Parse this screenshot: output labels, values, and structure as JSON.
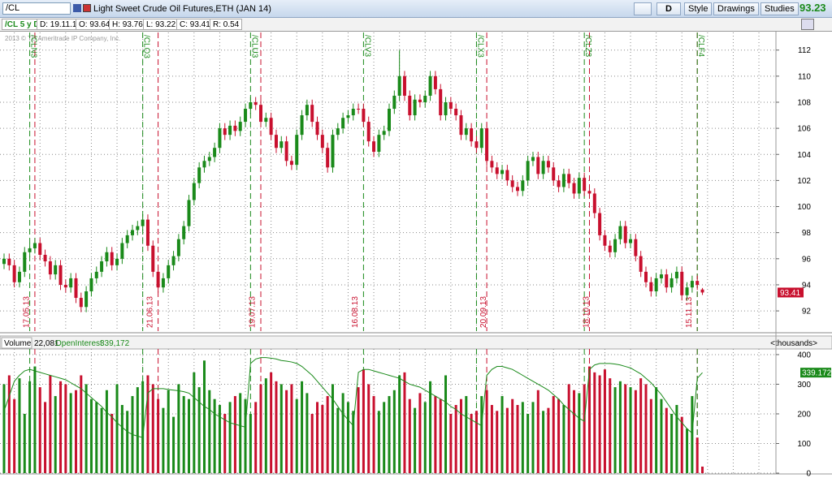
{
  "toolbar": {
    "symbol": "/CL",
    "title": "Light Sweet Crude Oil Futures,ETH (JAN 14)",
    "aggregation": "D",
    "style": "Style",
    "drawings": "Drawings",
    "studies": "Studies",
    "last": "93.23"
  },
  "info_bar": {
    "period": "/CL 5 y D",
    "date": "D: 19.11.13",
    "open": "O: 93.64",
    "high": "H: 93.76",
    "low": "L: 93.22",
    "close": "C: 93.41",
    "range": "R: 0.54"
  },
  "watermark": "2013 © TD Ameritrade IP Company, Inc.",
  "chart_data": [
    {
      "type": "candlestick",
      "up_color": "#1a8a1a",
      "down_color": "#c8102e",
      "grid": true,
      "ylim": [
        90.45,
        113.35
      ],
      "yticks": [
        92,
        94,
        96,
        98,
        100,
        102,
        104,
        106,
        108,
        110,
        112
      ],
      "categories": [
        null,
        null,
        null,
        null,
        null,
        "17.05.13",
        null,
        null,
        null,
        null,
        null,
        null,
        null,
        null,
        null,
        null,
        null,
        null,
        null,
        null,
        null,
        null,
        null,
        null,
        null,
        null,
        null,
        null,
        null,
        "21.06.13",
        null,
        null,
        null,
        null,
        null,
        null,
        null,
        null,
        null,
        null,
        null,
        null,
        null,
        null,
        null,
        null,
        null,
        null,
        null,
        "19.07.13",
        null,
        null,
        null,
        null,
        null,
        null,
        null,
        null,
        null,
        null,
        null,
        null,
        null,
        null,
        null,
        null,
        null,
        null,
        null,
        "16.08.13",
        null,
        null,
        null,
        null,
        null,
        null,
        null,
        null,
        null,
        null,
        null,
        null,
        null,
        null,
        null,
        null,
        null,
        null,
        null,
        null,
        null,
        null,
        null,
        null,
        "20.09.13",
        null,
        null,
        null,
        null,
        null,
        null,
        null,
        null,
        null,
        null,
        null,
        null,
        null,
        null,
        null,
        null,
        null,
        null,
        null,
        "18.10.13",
        null,
        null,
        null,
        null,
        null,
        null,
        null,
        null,
        null,
        null,
        null,
        null,
        null,
        null,
        null,
        null,
        null,
        null,
        null,
        "15.11.13",
        null,
        null
      ],
      "open": [
        95.6,
        96.0,
        95.5,
        94.2,
        95.0,
        96.5,
        96.8,
        97.2,
        96.3,
        95.8,
        94.8,
        95.5,
        94.0,
        93.8,
        94.5,
        93.0,
        92.3,
        93.5,
        94.5,
        95.0,
        95.8,
        96.5,
        95.5,
        96.0,
        97.2,
        97.8,
        98.2,
        98.5,
        99.0,
        97.0,
        95.0,
        93.8,
        94.5,
        95.5,
        96.2,
        97.5,
        98.5,
        100.5,
        101.8,
        103.0,
        103.5,
        103.8,
        104.5,
        106.0,
        105.5,
        106.2,
        105.8,
        106.5,
        107.5,
        108.0,
        107.8,
        106.5,
        106.8,
        105.5,
        104.5,
        105.0,
        103.5,
        103.2,
        105.5,
        107.0,
        107.8,
        106.5,
        105.5,
        104.5,
        103.0,
        105.5,
        106.0,
        106.8,
        107.0,
        107.5,
        107.5,
        106.5,
        105.0,
        104.2,
        105.5,
        105.8,
        107.5,
        108.5,
        110.0,
        108.5,
        107.0,
        108.2,
        108.0,
        108.5,
        110.0,
        109.0,
        107.0,
        108.0,
        107.5,
        107.0,
        105.5,
        106.0,
        105.0,
        104.5,
        106.0,
        103.5,
        103.0,
        102.5,
        102.8,
        102.0,
        101.5,
        101.2,
        102.0,
        103.5,
        103.8,
        102.5,
        103.5,
        103.0,
        102.0,
        101.5,
        102.5,
        101.8,
        101.0,
        102.2,
        101.2,
        101.0,
        99.5,
        97.8,
        97.0,
        96.5,
        97.5,
        98.5,
        97.2,
        97.5,
        96.2,
        95.0,
        94.2,
        93.5,
        94.5,
        94.8,
        93.8,
        94.5,
        95.0,
        93.2,
        93.8,
        94.3,
        93.64
      ],
      "high": [
        96.4,
        96.4,
        95.9,
        95.4,
        96.9,
        97.2,
        97.6,
        97.6,
        96.7,
        96.2,
        95.9,
        95.9,
        94.4,
        94.9,
        94.9,
        93.4,
        93.9,
        94.9,
        95.4,
        96.2,
        96.9,
        96.9,
        96.4,
        97.6,
        98.2,
        98.6,
        98.9,
        99.4,
        99.4,
        97.4,
        95.4,
        94.9,
        95.9,
        96.6,
        97.9,
        98.9,
        100.9,
        102.2,
        103.4,
        103.9,
        104.2,
        104.9,
        106.4,
        106.4,
        106.6,
        106.6,
        106.9,
        107.9,
        108.4,
        108.4,
        108.2,
        107.2,
        107.2,
        105.9,
        105.4,
        105.4,
        103.9,
        105.9,
        107.4,
        108.2,
        108.2,
        106.9,
        105.9,
        104.9,
        105.9,
        106.4,
        107.2,
        107.4,
        107.9,
        107.9,
        107.9,
        106.9,
        105.4,
        105.9,
        106.2,
        107.9,
        108.9,
        112.0,
        110.4,
        108.9,
        108.6,
        108.6,
        108.9,
        110.4,
        110.4,
        109.4,
        108.4,
        108.4,
        107.9,
        107.4,
        106.4,
        106.4,
        105.4,
        106.4,
        106.4,
        103.9,
        103.4,
        103.2,
        103.2,
        102.4,
        101.9,
        102.4,
        103.9,
        104.2,
        104.2,
        103.9,
        103.9,
        103.4,
        102.4,
        102.9,
        102.9,
        102.2,
        102.6,
        102.6,
        101.6,
        101.4,
        99.9,
        98.2,
        97.4,
        97.9,
        98.9,
        98.9,
        97.9,
        97.9,
        96.6,
        95.4,
        94.6,
        94.9,
        95.2,
        95.2,
        94.9,
        95.4,
        95.4,
        94.2,
        94.7,
        94.7,
        93.76
      ],
      "low": [
        95.2,
        95.1,
        93.8,
        93.8,
        94.6,
        96.1,
        96.4,
        95.9,
        95.4,
        94.4,
        94.4,
        93.6,
        93.4,
        93.4,
        92.6,
        91.9,
        91.9,
        93.1,
        94.1,
        94.6,
        95.4,
        95.1,
        95.1,
        95.6,
        96.8,
        97.4,
        97.8,
        98.1,
        96.6,
        94.6,
        93.4,
        93.4,
        94.1,
        95.1,
        95.8,
        97.1,
        98.1,
        100.1,
        101.4,
        102.6,
        103.1,
        103.4,
        104.1,
        105.1,
        105.1,
        105.4,
        105.4,
        106.1,
        107.1,
        107.4,
        106.1,
        106.1,
        105.1,
        104.1,
        104.1,
        103.1,
        102.8,
        102.8,
        105.1,
        106.6,
        106.1,
        105.1,
        104.1,
        102.6,
        102.6,
        105.1,
        105.6,
        106.4,
        106.6,
        107.1,
        106.1,
        104.6,
        103.8,
        103.8,
        105.1,
        105.4,
        107.1,
        108.1,
        108.1,
        106.6,
        106.6,
        107.6,
        107.6,
        108.1,
        108.6,
        106.6,
        106.6,
        107.1,
        106.6,
        105.1,
        105.1,
        104.6,
        104.1,
        104.1,
        103.1,
        102.6,
        102.1,
        102.1,
        101.6,
        101.1,
        100.8,
        100.8,
        101.6,
        103.1,
        102.1,
        102.1,
        102.6,
        101.6,
        101.1,
        101.1,
        101.4,
        100.6,
        100.6,
        100.8,
        100.6,
        99.1,
        97.4,
        96.6,
        96.1,
        96.1,
        97.1,
        96.8,
        96.8,
        95.8,
        94.6,
        93.8,
        93.1,
        93.1,
        94.1,
        93.4,
        93.4,
        94.1,
        92.8,
        92.8,
        93.4,
        93.6,
        93.22
      ],
      "close": [
        96.0,
        95.5,
        94.2,
        95.0,
        96.5,
        96.8,
        97.2,
        96.3,
        95.8,
        94.8,
        95.5,
        94.0,
        93.8,
        94.5,
        93.0,
        92.3,
        93.5,
        94.5,
        95.0,
        95.8,
        96.5,
        95.5,
        96.0,
        97.2,
        97.8,
        98.2,
        98.5,
        99.0,
        97.0,
        95.0,
        93.8,
        94.5,
        95.5,
        96.2,
        97.5,
        98.5,
        100.5,
        101.8,
        103.0,
        103.5,
        103.8,
        104.5,
        106.0,
        105.5,
        106.2,
        105.8,
        106.5,
        107.5,
        108.0,
        107.8,
        106.5,
        106.8,
        105.5,
        104.5,
        105.0,
        103.5,
        103.2,
        105.5,
        107.0,
        107.8,
        106.5,
        105.5,
        104.5,
        103.0,
        105.5,
        106.0,
        106.8,
        107.0,
        107.5,
        107.5,
        106.5,
        105.0,
        104.2,
        105.5,
        105.8,
        107.5,
        108.5,
        110.0,
        108.5,
        107.0,
        108.2,
        108.0,
        108.5,
        110.0,
        109.0,
        107.0,
        108.0,
        107.5,
        107.0,
        105.5,
        106.0,
        105.0,
        104.5,
        106.0,
        103.5,
        103.0,
        102.5,
        102.8,
        102.0,
        101.5,
        101.2,
        102.0,
        103.5,
        103.8,
        102.5,
        103.5,
        103.0,
        102.0,
        101.5,
        102.5,
        101.8,
        101.0,
        102.2,
        101.2,
        101.0,
        99.5,
        97.8,
        97.0,
        96.5,
        97.5,
        98.5,
        97.2,
        97.5,
        96.2,
        95.0,
        94.2,
        93.5,
        94.5,
        94.8,
        93.8,
        94.5,
        95.0,
        93.2,
        93.8,
        94.3,
        94.0,
        93.41
      ],
      "rollovers": [
        {
          "at": 5,
          "label": "/CLN3"
        },
        {
          "at": 27,
          "label": "/CLQ3"
        },
        {
          "at": 48,
          "label": "/CLU3"
        },
        {
          "at": 70,
          "label": "/CLV3"
        },
        {
          "at": 92,
          "label": "/CLX3"
        },
        {
          "at": 113,
          "label": "/CLZ3"
        },
        {
          "at": 135,
          "label": "/CLF4"
        }
      ],
      "rollover_color": "#1a8a1a",
      "expirations": [
        6,
        30,
        50,
        94,
        114,
        135
      ],
      "expiration_color": "#c8102e"
    },
    {
      "type": "bar",
      "unit_label": "<thousands>",
      "grid": true,
      "ylim": [
        0,
        419
      ],
      "yticks": [
        0,
        100,
        200,
        300,
        400
      ],
      "series": [
        {
          "name": "Volume",
          "last_label": "22,081",
          "values": [
            300,
            330,
            250,
            320,
            200,
            310,
            360,
            290,
            240,
            330,
            260,
            310,
            300,
            270,
            280,
            330,
            300,
            250,
            240,
            220,
            280,
            200,
            300,
            230,
            210,
            260,
            290,
            310,
            330,
            300,
            250,
            220,
            280,
            190,
            300,
            260,
            250,
            340,
            290,
            380,
            280,
            250,
            230,
            200,
            240,
            260,
            270,
            250,
            200,
            240,
            300,
            320,
            340,
            310,
            300,
            280,
            300,
            250,
            310,
            270,
            200,
            240,
            230,
            260,
            300,
            220,
            270,
            240,
            210,
            290,
            350,
            300,
            260,
            210,
            240,
            260,
            280,
            330,
            340,
            250,
            220,
            270,
            240,
            310,
            260,
            250,
            330,
            200,
            230,
            250,
            260,
            200,
            210,
            260,
            280,
            230,
            210,
            260,
            220,
            250,
            230,
            240,
            200,
            240,
            280,
            210,
            220,
            260,
            250,
            230,
            300,
            280,
            270,
            300,
            360,
            340,
            330,
            350,
            320,
            290,
            310,
            300,
            290,
            280,
            320,
            300,
            250,
            290,
            250,
            220,
            200,
            230,
            190,
            150,
            260,
            120,
            22.081
          ]
        },
        {
          "name": "OpenInterest",
          "type": "line",
          "color": "#1a8a1a",
          "last_label": "339,172",
          "values": [
            210,
            260,
            310,
            330,
            345,
            350,
            345,
            340,
            335,
            330,
            325,
            320,
            315,
            305,
            295,
            285,
            270,
            255,
            240,
            225,
            205,
            190,
            170,
            155,
            140,
            130,
            125,
            120,
            270,
            285,
            285,
            285,
            282,
            280,
            278,
            275,
            270,
            255,
            240,
            225,
            215,
            200,
            190,
            180,
            170,
            165,
            160,
            155,
            370,
            385,
            390,
            390,
            388,
            385,
            380,
            378,
            375,
            370,
            360,
            345,
            330,
            310,
            290,
            270,
            250,
            225,
            200,
            180,
            160,
            340,
            350,
            350,
            345,
            340,
            335,
            330,
            325,
            320,
            310,
            300,
            295,
            290,
            280,
            270,
            260,
            250,
            240,
            225,
            215,
            200,
            190,
            180,
            170,
            160,
            330,
            350,
            360,
            360,
            355,
            350,
            340,
            330,
            320,
            310,
            300,
            290,
            280,
            265,
            250,
            230,
            215,
            200,
            185,
            175,
            350,
            365,
            370,
            370,
            370,
            368,
            365,
            360,
            355,
            345,
            335,
            320,
            305,
            285,
            265,
            240,
            215,
            190,
            170,
            150,
            135,
            320,
            339.172
          ]
        }
      ]
    }
  ]
}
